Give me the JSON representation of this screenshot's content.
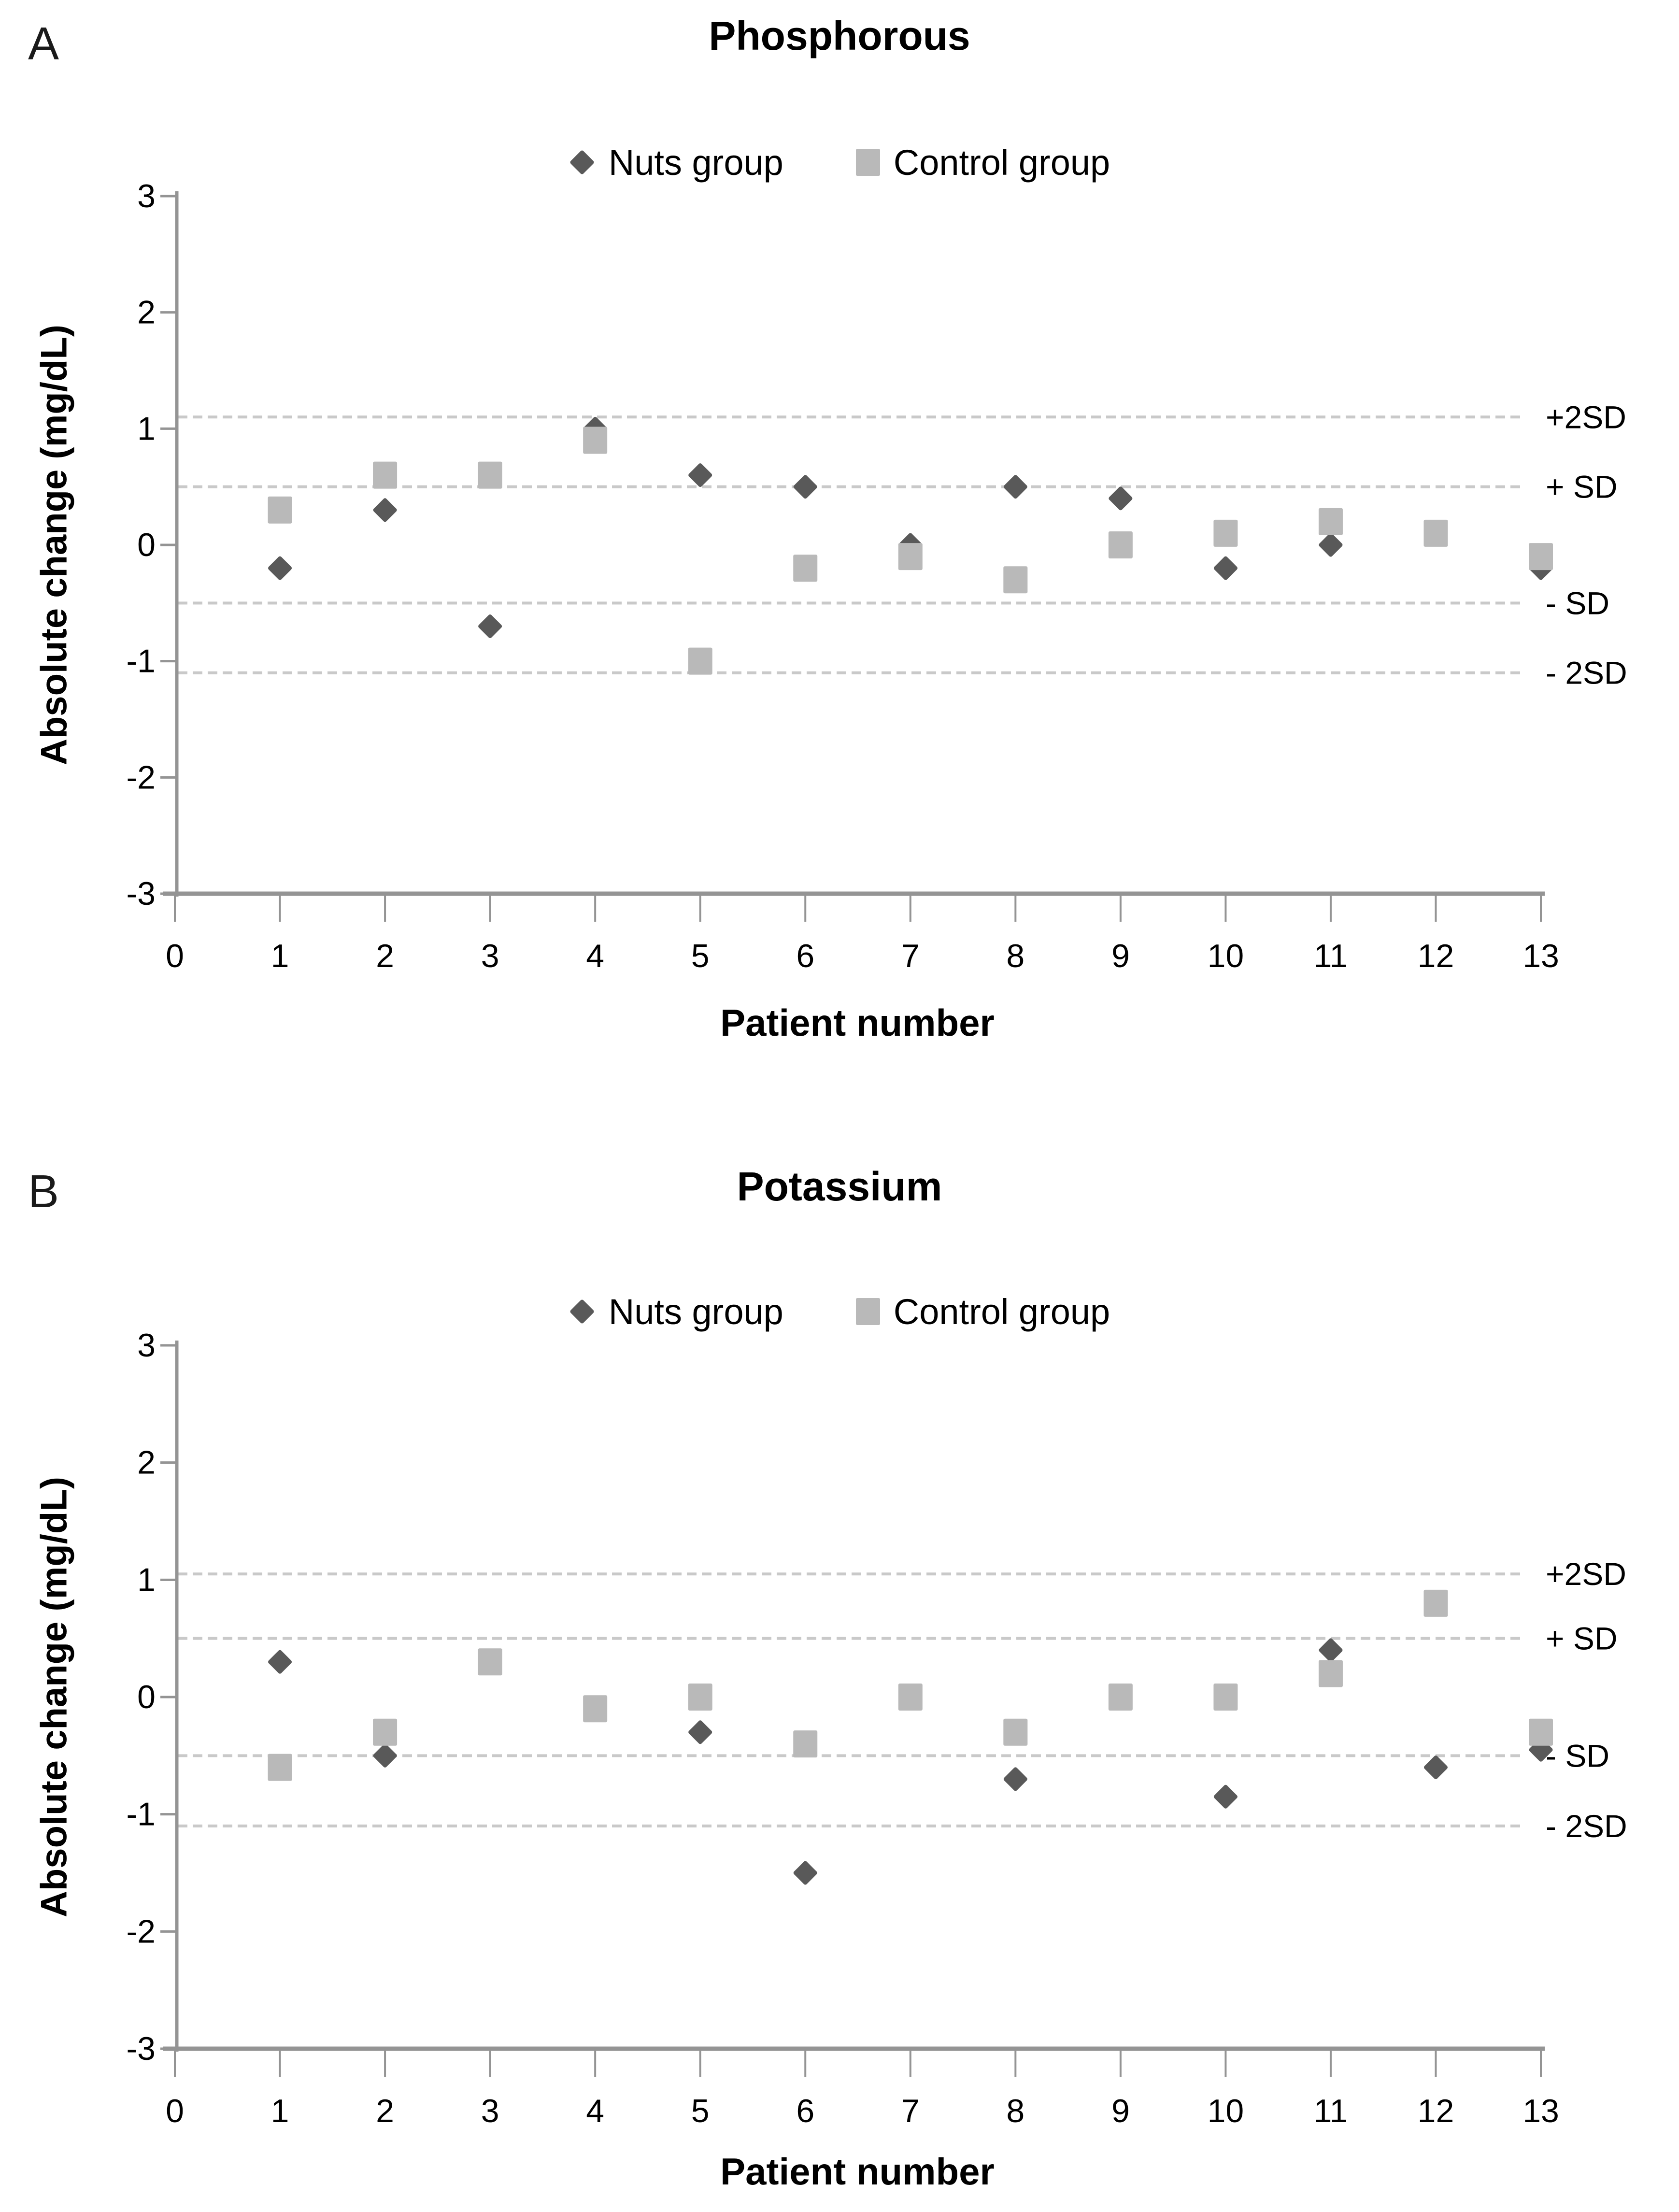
{
  "figure": {
    "colors": {
      "nuts": "#595959",
      "control": "#b9b9b9",
      "dashed_line": "#c9c9c9",
      "axis": "#949494",
      "text": "#000000"
    }
  },
  "chart_data": [
    {
      "type": "scatter",
      "panel_label": "A",
      "title": "Phosphorous",
      "xlabel": "Patient number",
      "ylabel": "Absolute change (mg/dL)",
      "xlim": [
        0,
        13
      ],
      "ylim": [
        -3,
        3
      ],
      "grid": false,
      "legend_position": "top",
      "x_ticks": [
        0,
        1,
        2,
        3,
        4,
        5,
        6,
        7,
        8,
        9,
        10,
        11,
        12,
        13
      ],
      "y_ticks": [
        3,
        2,
        1,
        0,
        -1,
        -2,
        -3
      ],
      "x": [
        1,
        2,
        3,
        4,
        5,
        6,
        7,
        8,
        9,
        10,
        11,
        12,
        13
      ],
      "series": [
        {
          "name": "Nuts group",
          "marker": "diamond",
          "values": [
            -0.2,
            0.3,
            -0.7,
            1.0,
            0.6,
            0.5,
            0.0,
            0.5,
            0.4,
            -0.2,
            0.0,
            null,
            -0.2
          ]
        },
        {
          "name": "Control group",
          "marker": "square",
          "values": [
            0.3,
            0.6,
            0.6,
            0.9,
            -1.0,
            -0.2,
            -0.1,
            -0.3,
            0.0,
            0.1,
            0.2,
            0.1,
            -0.1
          ]
        }
      ],
      "sd_lines": [
        {
          "label": "+2SD",
          "value": 1.1
        },
        {
          "label": "+ SD",
          "value": 0.5
        },
        {
          "label": "- SD",
          "value": -0.5
        },
        {
          "label": "- 2SD",
          "value": -1.1
        }
      ]
    },
    {
      "type": "scatter",
      "panel_label": "B",
      "title": "Potassium",
      "xlabel": "Patient number",
      "ylabel": "Absolute change (mg/dL)",
      "xlim": [
        0,
        13
      ],
      "ylim": [
        -3,
        3
      ],
      "grid": false,
      "legend_position": "top",
      "x_ticks": [
        0,
        1,
        2,
        3,
        4,
        5,
        6,
        7,
        8,
        9,
        10,
        11,
        12,
        13
      ],
      "y_ticks": [
        3,
        2,
        1,
        0,
        -1,
        -2,
        -3
      ],
      "x": [
        1,
        2,
        3,
        4,
        5,
        6,
        7,
        8,
        9,
        10,
        11,
        12,
        13
      ],
      "series": [
        {
          "name": "Nuts group",
          "marker": "diamond",
          "values": [
            0.3,
            -0.5,
            null,
            null,
            -0.3,
            -1.5,
            null,
            -0.7,
            null,
            -0.85,
            0.4,
            -0.6,
            -0.45
          ]
        },
        {
          "name": "Control group",
          "marker": "square",
          "values": [
            -0.6,
            -0.3,
            0.3,
            -0.1,
            0.0,
            -0.4,
            0.0,
            -0.3,
            0.0,
            0.0,
            0.2,
            0.8,
            -0.3
          ]
        }
      ],
      "sd_lines": [
        {
          "label": "+2SD",
          "value": 1.05
        },
        {
          "label": "+ SD",
          "value": 0.5
        },
        {
          "label": "- SD",
          "value": -0.5
        },
        {
          "label": "- 2SD",
          "value": -1.1
        }
      ]
    }
  ]
}
